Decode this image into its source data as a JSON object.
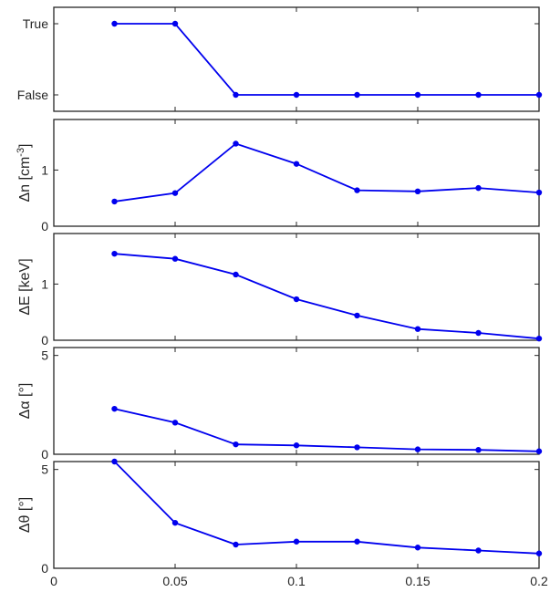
{
  "chart_data": [
    {
      "type": "line",
      "ylabel": "",
      "y_axis": "categorical",
      "yticklabels": [
        "True",
        "False"
      ],
      "x": [
        0.025,
        0.05,
        0.075,
        0.1,
        0.125,
        0.15,
        0.175,
        0.2
      ],
      "y": [
        1,
        1,
        0,
        0,
        0,
        0,
        0,
        0
      ],
      "ylim": [
        -0.1,
        1.1
      ],
      "xlim": [
        0,
        0.2
      ],
      "show_xticklabels": false
    },
    {
      "type": "line",
      "ylabel": "Δn [cm",
      "ylabel_sup": "-3",
      "ylabel_tail": "]",
      "x": [
        0.025,
        0.05,
        0.075,
        0.1,
        0.125,
        0.15,
        0.175,
        0.2
      ],
      "y": [
        0.44,
        0.59,
        1.47,
        1.11,
        0.64,
        0.62,
        0.68,
        0.6
      ],
      "ylim": [
        0,
        1.9
      ],
      "yticks": [
        0,
        1
      ],
      "yticklabels": [
        "0",
        "1"
      ],
      "xlim": [
        0,
        0.2
      ],
      "show_xticklabels": false
    },
    {
      "type": "line",
      "ylabel": "ΔE [keV]",
      "x": [
        0.025,
        0.05,
        0.075,
        0.1,
        0.125,
        0.15,
        0.175,
        0.2
      ],
      "y": [
        1.54,
        1.45,
        1.17,
        0.73,
        0.44,
        0.2,
        0.13,
        0.03
      ],
      "ylim": [
        0,
        1.9
      ],
      "yticks": [
        0,
        1
      ],
      "yticklabels": [
        "0",
        "1"
      ],
      "xlim": [
        0,
        0.2
      ],
      "show_xticklabels": false
    },
    {
      "type": "line",
      "ylabel": "Δα [°]",
      "x": [
        0.025,
        0.05,
        0.075,
        0.1,
        0.125,
        0.15,
        0.175,
        0.2
      ],
      "y": [
        2.3,
        1.6,
        0.5,
        0.45,
        0.35,
        0.25,
        0.22,
        0.15
      ],
      "ylim": [
        0,
        5.4
      ],
      "yticks": [
        0,
        5
      ],
      "yticklabels": [
        "0",
        "5"
      ],
      "xlim": [
        0,
        0.2
      ],
      "show_xticklabels": false
    },
    {
      "type": "line",
      "ylabel": "Δθ [°]",
      "x": [
        0.025,
        0.05,
        0.075,
        0.1,
        0.125,
        0.15,
        0.175,
        0.2
      ],
      "y": [
        5.5,
        2.3,
        1.2,
        1.35,
        1.35,
        1.05,
        0.9,
        0.75
      ],
      "ylim": [
        0,
        5.4
      ],
      "yticks": [
        0,
        5
      ],
      "yticklabels": [
        "0",
        "5"
      ],
      "xlim": [
        0,
        0.2
      ],
      "xticks": [
        0,
        0.05,
        0.1,
        0.15,
        0.2
      ],
      "xticklabels": [
        "0",
        "0.05",
        "0.1",
        "0.15",
        "0.2"
      ],
      "show_xticklabels": true
    }
  ],
  "style": {
    "line_color": "#0000ee",
    "axis_color": "#262626",
    "background": "#ffffff"
  }
}
